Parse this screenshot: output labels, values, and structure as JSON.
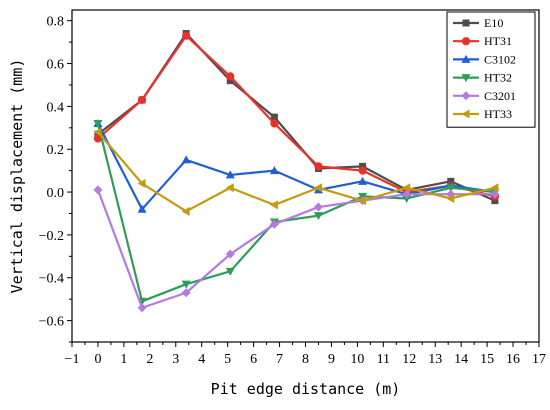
{
  "chart_data": {
    "type": "line",
    "xlabel": "Pit edge distance (m)",
    "ylabel": "Vertical displacement (mm)",
    "xlim": [
      -1,
      17
    ],
    "ylim": [
      -0.7,
      0.85
    ],
    "xticks": [
      -1,
      0,
      1,
      2,
      3,
      4,
      5,
      6,
      7,
      8,
      9,
      10,
      11,
      12,
      13,
      14,
      15,
      16,
      17
    ],
    "yticks": [
      -0.6,
      -0.4,
      -0.2,
      0.0,
      0.2,
      0.4,
      0.6,
      0.8
    ],
    "ytick_labels": [
      "−0.6",
      "−0.4",
      "−0.2",
      "0.0",
      "0.2",
      "0.4",
      "0.6",
      "0.8"
    ],
    "xtick_labels": [
      "−1",
      "0",
      "1",
      "2",
      "3",
      "4",
      "5",
      "6",
      "7",
      "8",
      "9",
      "10",
      "11",
      "12",
      "13",
      "14",
      "15",
      "16",
      "17"
    ],
    "legend_position": "top-right",
    "grid": false,
    "x": [
      0,
      1.7,
      3.4,
      5.1,
      6.8,
      8.5,
      10.2,
      11.9,
      13.6,
      15.3
    ],
    "series": [
      {
        "name": "E10",
        "color": "#4d4d4d",
        "marker": "square",
        "values": [
          0.27,
          0.43,
          0.74,
          0.52,
          0.35,
          0.11,
          0.12,
          0.01,
          0.05,
          -0.04
        ]
      },
      {
        "name": "HT31",
        "color": "#e8312b",
        "marker": "circle",
        "values": [
          0.25,
          0.43,
          0.73,
          0.54,
          0.32,
          0.12,
          0.1,
          0.0,
          0.03,
          -0.02
        ]
      },
      {
        "name": "C3102",
        "color": "#1f5fcf",
        "marker": "triangle-up",
        "values": [
          0.32,
          -0.08,
          0.15,
          0.08,
          0.1,
          0.01,
          0.05,
          -0.01,
          0.03,
          0.0
        ]
      },
      {
        "name": "HT32",
        "color": "#2e9d5a",
        "marker": "triangle-down",
        "values": [
          0.32,
          -0.51,
          -0.43,
          -0.37,
          -0.14,
          -0.11,
          -0.02,
          -0.03,
          0.02,
          0.0
        ]
      },
      {
        "name": "C3201",
        "color": "#b47ae0",
        "marker": "diamond",
        "values": [
          0.01,
          -0.54,
          -0.47,
          -0.29,
          -0.15,
          -0.07,
          -0.04,
          -0.01,
          -0.01,
          -0.01
        ]
      },
      {
        "name": "HT33",
        "color": "#c49a0e",
        "marker": "triangle-left",
        "values": [
          0.28,
          0.04,
          -0.09,
          0.02,
          -0.06,
          0.02,
          -0.04,
          0.02,
          -0.03,
          0.02
        ]
      }
    ]
  }
}
